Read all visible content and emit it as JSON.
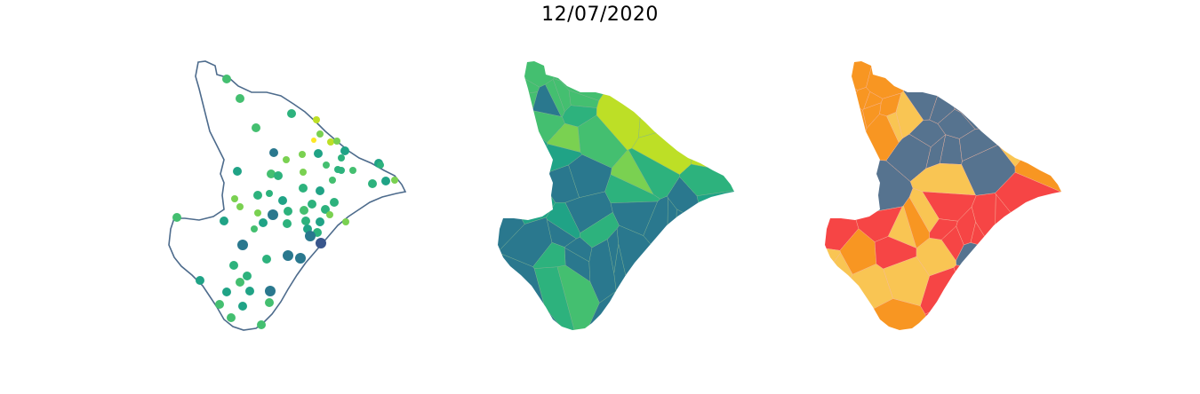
{
  "title": "12/07/2020",
  "colors": {
    "outline": "#4d6b8c",
    "viridis": [
      "#440154",
      "#39568c",
      "#2a788e",
      "#20a386",
      "#2db27d",
      "#44bf70",
      "#7ad151",
      "#bddf26",
      "#fde725"
    ],
    "risk": [
      "#56738f",
      "#f9c553",
      "#f89622",
      "#f64545"
    ]
  },
  "panels": [
    {
      "name": "points-map",
      "type": "scatter"
    },
    {
      "name": "viridis-choropleth",
      "type": "choropleth"
    },
    {
      "name": "risk-choropleth",
      "type": "choropleth"
    }
  ]
}
